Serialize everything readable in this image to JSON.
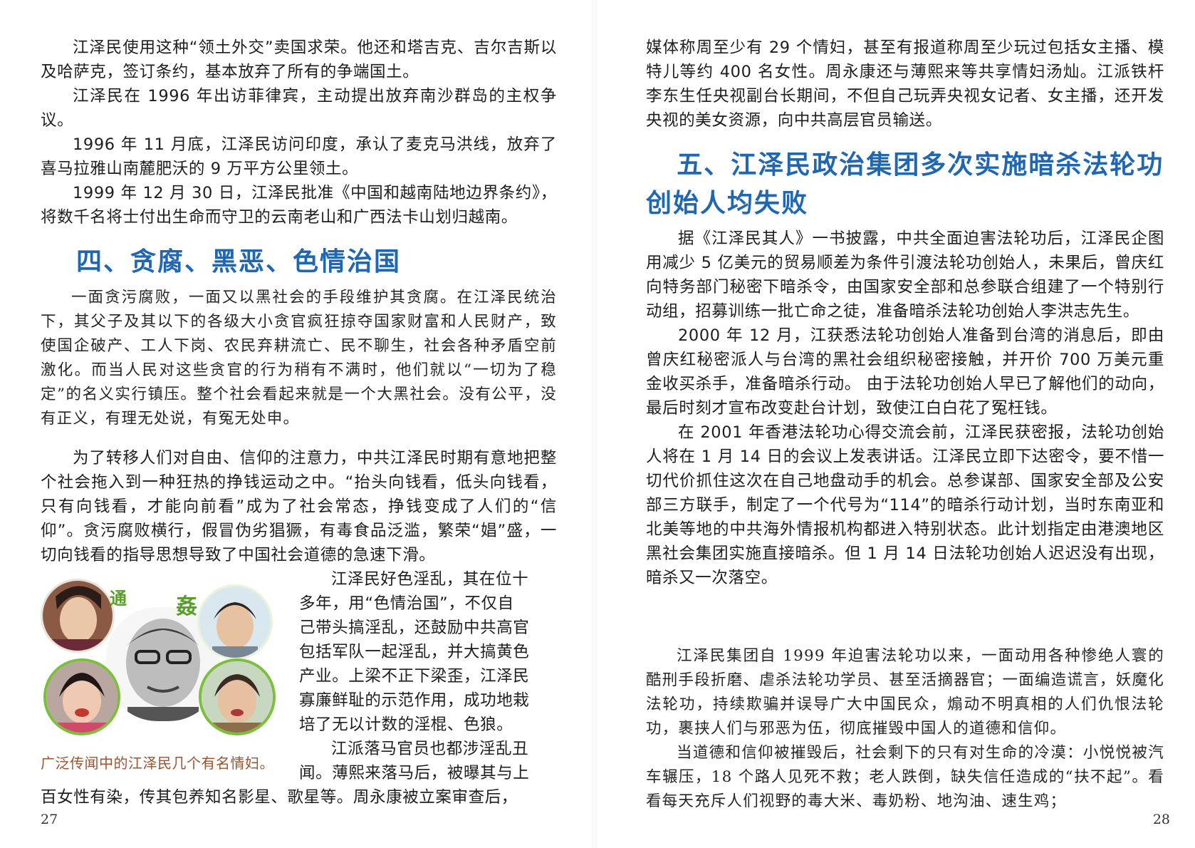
{
  "left_page": {
    "paragraphs_top": [
      "江泽民使用这种“领土外交”卖国求荣。他还和塔吉克、吉尔吉斯以及哈萨克，签订条约，基本放弃了所有的争端国土。",
      "江泽民在 1996 年出访菲律宾，主动提出放弃南沙群岛的主权争议。",
      "1996 年 11 月底，江泽民访问印度，承认了麦克马洪线，放弃了喜马拉雅山南麓肥沃的 9 万平方公里领土。",
      "1999 年 12 月 30 日，江泽民批准《中国和越南陆地边界条约》，将数千名将士付出生命而守卫的云南老山和广西法卡山划归越南。"
    ],
    "heading": "四、贪腐、黑恶、色情治国",
    "quote": "一面贪污腐败，一面又以黑社会的手段维护其贪腐。在江泽民统治下，其父子及其以下的各级大小贪官疯狂掠夺国家财富和人民财产，致使国企破产、工人下岗、农民弃耕流亡、民不聊生，社会各种矛盾空前激化。而当人民对这些贪官的行为稍有不满时，他们就以“一切为了稳定”的名义实行镇压。整个社会看起来就是一个大黑社会。没有公平，没有正义，有理无处说，有冤无处申。",
    "paragraph_money": "为了转移人们对自由、信仰的注意力，中共江泽民时期有意地把整个社会拖入到一种狂热的挣钱运动之中。“抬头向钱看，低头向钱看，只有向钱看，才能向前看”成为了社会常态，挣钱变成了人们的“信仰”。贪污腐败横行，假冒伪劣猖獗，有毒食品泛滥，繁荣“娼”盛，一切向钱看的指导思想导致了中国社会道德的急速下滑。",
    "side_lines": [
      "江泽民好色淫乱，其在位十",
      "多年，用“色情治国”，不仅自",
      "己带头搞淫乱，还鼓励中共高官",
      "包括军队一起淫乱，并大搞黄色",
      "产业。上梁不正下梁歪，江泽民",
      "寡廉鲜耻的示范作用，成功地栽",
      "培了无以计数的淫棍、色狼。",
      "江派落马官员也都涉淫乱丑",
      "闻。薄熙来落马后，被曝其与上"
    ],
    "last_line": "百女性有染，传其包养知名影星、歌星等。周永康被立案审查后，",
    "image": {
      "word_left": "通",
      "word_right": "姦",
      "caption": "广泛传闻中的江泽民几个有名情妇。"
    },
    "page_number": "27"
  },
  "right_page": {
    "paragraph_continued": "媒体称周至少有 29 个情妇，甚至有报道称周至少玩过包括女主播、模特儿等约 400 名女性。周永康还与薄熙来等共享情妇汤灿。江派铁杆李东生任央视副台长期间，不但自己玩弄央视女记者、女主播，还开发央视的美女资源，向中共高层官员输送。",
    "heading_line1": "五、江泽民政治集团多次实施暗杀法轮功",
    "heading_line2": "创始人均失败",
    "paragraphs": [
      "据《江泽民其人》一书披露，中共全面迫害法轮功后，江泽民企图用减少 5 亿美元的贸易顺差为条件引渡法轮功创始人，未果后，曾庆红向特务部门秘密下暗杀令，由国家安全部和总参联合组建了一个特别行动组，招募训练一批亡命之徒，准备暗杀法轮功创始人李洪志先生。",
      "2000 年 12 月，江获悉法轮功创始人准备到台湾的消息后，即由曾庆红秘密派人与台湾的黑社会组织秘密接触，并开价 700 万美元重金收买杀手，准备暗杀行动。 由于法轮功创始人早已了解他们的动向，最后时刻才宣布改变赴台计划，致使江白白花了冤枉钱。",
      "在 2001 年香港法轮功心得交流会前，江泽民获密报，法轮功创始人将在 1 月 14 日的会议上发表讲话。江泽民立即下达密令，要不惜一切代价抓住这次在自己地盘动手的机会。总参谋部、国家安全部及公安部三方联手，制定了一个代号为“114”的暗杀行动计划，当时东南亚和北美等地的中共海外情报机构都进入特别状态。此计划指定由港澳地区黑社会集团实施直接暗杀。但 1 月 14 日法轮功创始人迟迟没有出现，暗杀又一次落空。"
    ],
    "quote_paragraphs": [
      "江泽民集团自 1999 年迫害法轮功以来，一面动用各种惨绝人寰的酷刑手段折磨、虐杀法轮功学员、甚至活摘器官；一面编造谎言，妖魔化法轮功，持续欺骗并误导广大中国民众，煽动不明真相的人们仇恨法轮功，裹挟人们与邪恶为伍，彻底摧毁中国人的道德和信仰。",
      "当道德和信仰被摧毁后，社会剩下的只有对生命的冷漠：小悦悦被汽车辗压，18 个路人见死不救；老人跌倒，缺失信任造成的“扶不起”。看看每天充斥人们视野的毒大米、毒奶粉、地沟油、速生鸡；"
    ],
    "page_number": "28"
  },
  "colors": {
    "heading_blue": "#1f67b3",
    "caption_brown": "#a0522d",
    "collage_word_green": "#5a9e2e",
    "face_ring_green": "#7cbf3a"
  }
}
